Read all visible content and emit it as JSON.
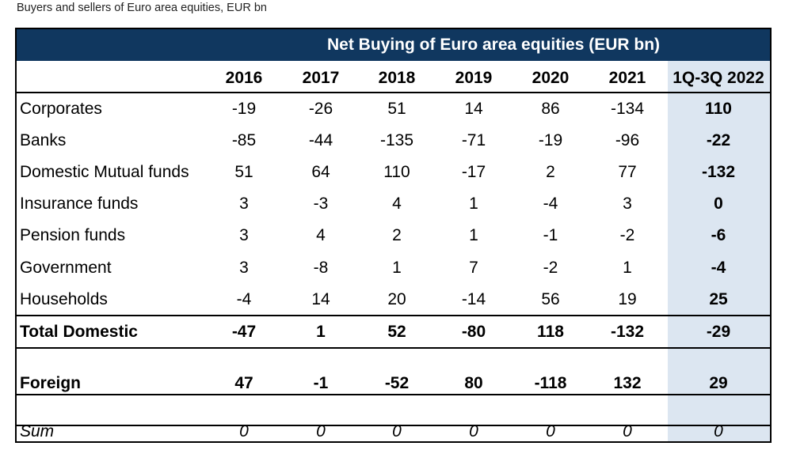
{
  "caption": "Buyers and sellers of Euro area equities, EUR bn",
  "colors": {
    "title_bar": "#10375f",
    "highlight_column": "#dce6f1"
  },
  "chart_data": {
    "type": "table",
    "title": "Net Buying of Euro area equities (EUR bn)",
    "columns": [
      "2016",
      "2017",
      "2018",
      "2019",
      "2020",
      "2021",
      "1Q-3Q 2022"
    ],
    "rows": [
      {
        "label": "Corporates",
        "values": [
          "-19",
          "-26",
          "51",
          "14",
          "86",
          "-134",
          "110"
        ]
      },
      {
        "label": "Banks",
        "values": [
          "-85",
          "-44",
          "-135",
          "-71",
          "-19",
          "-96",
          "-22"
        ]
      },
      {
        "label": "Domestic Mutual funds",
        "values": [
          "51",
          "64",
          "110",
          "-17",
          "2",
          "77",
          "-132"
        ]
      },
      {
        "label": "Insurance funds",
        "values": [
          "3",
          "-3",
          "4",
          "1",
          "-4",
          "3",
          "0"
        ]
      },
      {
        "label": "Pension funds",
        "values": [
          "3",
          "4",
          "2",
          "1",
          "-1",
          "-2",
          "-6"
        ]
      },
      {
        "label": "Government",
        "values": [
          "3",
          "-8",
          "1",
          "7",
          "-2",
          "1",
          "-4"
        ]
      },
      {
        "label": "Households",
        "values": [
          "-4",
          "14",
          "20",
          "-14",
          "56",
          "19",
          "25"
        ]
      },
      {
        "label": "Total Domestic",
        "values": [
          "-47",
          "1",
          "52",
          "-80",
          "118",
          "-132",
          "-29"
        ]
      },
      {
        "label": "Foreign",
        "values": [
          "47",
          "-1",
          "-52",
          "80",
          "-118",
          "132",
          "29"
        ]
      },
      {
        "label": "Sum",
        "values": [
          "0",
          "0",
          "0",
          "0",
          "0",
          "0",
          "0"
        ]
      }
    ]
  }
}
